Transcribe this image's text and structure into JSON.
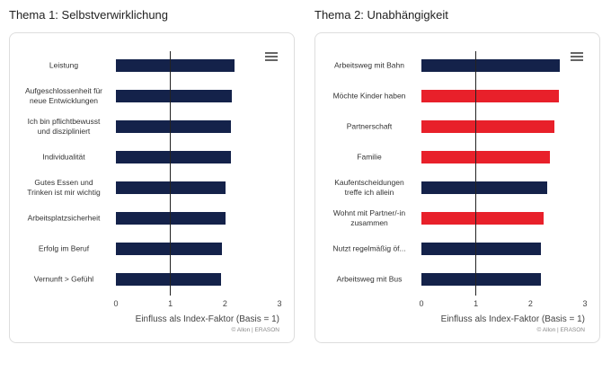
{
  "chart_data": [
    {
      "type": "bar",
      "orientation": "horizontal",
      "title": "Thema 1: Selbstverwirklichung",
      "categories": [
        "Leistung",
        "Aufgeschlossenheit für neue Entwicklungen",
        "Ich bin pflichtbewusst und diszipliniert",
        "Individualität",
        "Gutes Essen und Trinken ist mir wichtig",
        "Arbeitsplatzsicherheit",
        "Erfolg im Beruf",
        "Vernunft > Gefühl"
      ],
      "values": [
        2.17,
        2.13,
        2.11,
        2.11,
        2.01,
        2.01,
        1.94,
        1.93
      ],
      "colors": [
        "#14224a",
        "#14224a",
        "#14224a",
        "#14224a",
        "#14224a",
        "#14224a",
        "#14224a",
        "#14224a"
      ],
      "xlim": [
        0,
        3
      ],
      "xticks": [
        0,
        1,
        2,
        3
      ],
      "reference_line": 1,
      "x_label": "Einfluss als Index-Faktor (Basis = 1)",
      "credit": "© Allon | ERASON"
    },
    {
      "type": "bar",
      "orientation": "horizontal",
      "title": "Thema 2: Unabhängigkeit",
      "categories": [
        "Arbeitsweg mit Bahn",
        "Möchte Kinder haben",
        "Partnerschaft",
        "Familie",
        "Kaufentscheidungen treffe ich allein",
        "Wohnt mit Partner/-in zusammen",
        "Nutzt regelmäßig öf...",
        "Arbeitsweg mit Bus"
      ],
      "values": [
        2.54,
        2.52,
        2.44,
        2.36,
        2.31,
        2.24,
        2.19,
        2.19
      ],
      "colors": [
        "#14224a",
        "#e8202a",
        "#e8202a",
        "#e8202a",
        "#14224a",
        "#e8202a",
        "#14224a",
        "#14224a"
      ],
      "xlim": [
        0,
        3
      ],
      "xticks": [
        0,
        1,
        2,
        3
      ],
      "reference_line": 1,
      "x_label": "Einfluss als Index-Faktor (Basis = 1)",
      "credit": "© Allon | ERASON"
    }
  ]
}
